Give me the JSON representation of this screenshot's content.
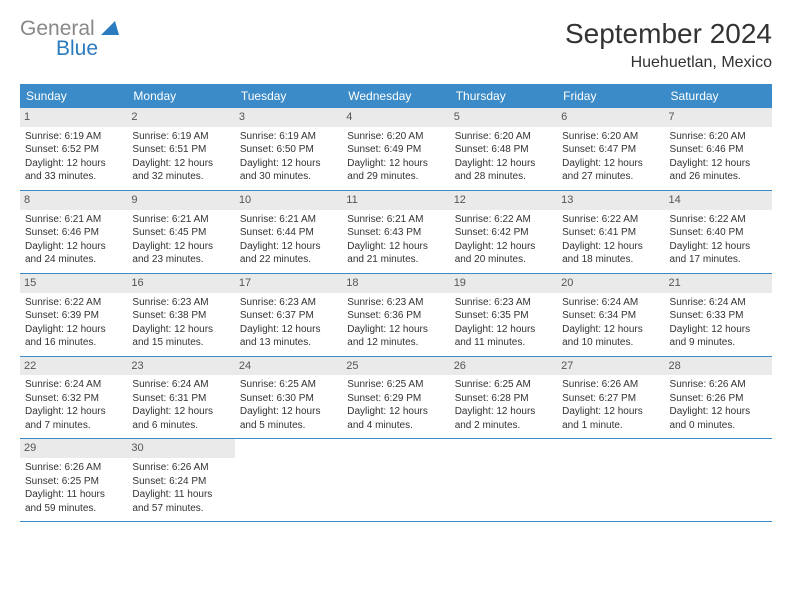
{
  "logo": {
    "general": "General",
    "blue": "Blue"
  },
  "title": "September 2024",
  "location": "Huehuetlan, Mexico",
  "colors": {
    "header_bg": "#3b8bc8",
    "header_text": "#ffffff",
    "daynum_bg": "#eaeaea",
    "border": "#3b8bc8",
    "logo_gray": "#888888",
    "logo_blue": "#2b7bbf"
  },
  "day_names": [
    "Sunday",
    "Monday",
    "Tuesday",
    "Wednesday",
    "Thursday",
    "Friday",
    "Saturday"
  ],
  "weeks": [
    [
      {
        "n": "1",
        "sr": "Sunrise: 6:19 AM",
        "ss": "Sunset: 6:52 PM",
        "d1": "Daylight: 12 hours",
        "d2": "and 33 minutes."
      },
      {
        "n": "2",
        "sr": "Sunrise: 6:19 AM",
        "ss": "Sunset: 6:51 PM",
        "d1": "Daylight: 12 hours",
        "d2": "and 32 minutes."
      },
      {
        "n": "3",
        "sr": "Sunrise: 6:19 AM",
        "ss": "Sunset: 6:50 PM",
        "d1": "Daylight: 12 hours",
        "d2": "and 30 minutes."
      },
      {
        "n": "4",
        "sr": "Sunrise: 6:20 AM",
        "ss": "Sunset: 6:49 PM",
        "d1": "Daylight: 12 hours",
        "d2": "and 29 minutes."
      },
      {
        "n": "5",
        "sr": "Sunrise: 6:20 AM",
        "ss": "Sunset: 6:48 PM",
        "d1": "Daylight: 12 hours",
        "d2": "and 28 minutes."
      },
      {
        "n": "6",
        "sr": "Sunrise: 6:20 AM",
        "ss": "Sunset: 6:47 PM",
        "d1": "Daylight: 12 hours",
        "d2": "and 27 minutes."
      },
      {
        "n": "7",
        "sr": "Sunrise: 6:20 AM",
        "ss": "Sunset: 6:46 PM",
        "d1": "Daylight: 12 hours",
        "d2": "and 26 minutes."
      }
    ],
    [
      {
        "n": "8",
        "sr": "Sunrise: 6:21 AM",
        "ss": "Sunset: 6:46 PM",
        "d1": "Daylight: 12 hours",
        "d2": "and 24 minutes."
      },
      {
        "n": "9",
        "sr": "Sunrise: 6:21 AM",
        "ss": "Sunset: 6:45 PM",
        "d1": "Daylight: 12 hours",
        "d2": "and 23 minutes."
      },
      {
        "n": "10",
        "sr": "Sunrise: 6:21 AM",
        "ss": "Sunset: 6:44 PM",
        "d1": "Daylight: 12 hours",
        "d2": "and 22 minutes."
      },
      {
        "n": "11",
        "sr": "Sunrise: 6:21 AM",
        "ss": "Sunset: 6:43 PM",
        "d1": "Daylight: 12 hours",
        "d2": "and 21 minutes."
      },
      {
        "n": "12",
        "sr": "Sunrise: 6:22 AM",
        "ss": "Sunset: 6:42 PM",
        "d1": "Daylight: 12 hours",
        "d2": "and 20 minutes."
      },
      {
        "n": "13",
        "sr": "Sunrise: 6:22 AM",
        "ss": "Sunset: 6:41 PM",
        "d1": "Daylight: 12 hours",
        "d2": "and 18 minutes."
      },
      {
        "n": "14",
        "sr": "Sunrise: 6:22 AM",
        "ss": "Sunset: 6:40 PM",
        "d1": "Daylight: 12 hours",
        "d2": "and 17 minutes."
      }
    ],
    [
      {
        "n": "15",
        "sr": "Sunrise: 6:22 AM",
        "ss": "Sunset: 6:39 PM",
        "d1": "Daylight: 12 hours",
        "d2": "and 16 minutes."
      },
      {
        "n": "16",
        "sr": "Sunrise: 6:23 AM",
        "ss": "Sunset: 6:38 PM",
        "d1": "Daylight: 12 hours",
        "d2": "and 15 minutes."
      },
      {
        "n": "17",
        "sr": "Sunrise: 6:23 AM",
        "ss": "Sunset: 6:37 PM",
        "d1": "Daylight: 12 hours",
        "d2": "and 13 minutes."
      },
      {
        "n": "18",
        "sr": "Sunrise: 6:23 AM",
        "ss": "Sunset: 6:36 PM",
        "d1": "Daylight: 12 hours",
        "d2": "and 12 minutes."
      },
      {
        "n": "19",
        "sr": "Sunrise: 6:23 AM",
        "ss": "Sunset: 6:35 PM",
        "d1": "Daylight: 12 hours",
        "d2": "and 11 minutes."
      },
      {
        "n": "20",
        "sr": "Sunrise: 6:24 AM",
        "ss": "Sunset: 6:34 PM",
        "d1": "Daylight: 12 hours",
        "d2": "and 10 minutes."
      },
      {
        "n": "21",
        "sr": "Sunrise: 6:24 AM",
        "ss": "Sunset: 6:33 PM",
        "d1": "Daylight: 12 hours",
        "d2": "and 9 minutes."
      }
    ],
    [
      {
        "n": "22",
        "sr": "Sunrise: 6:24 AM",
        "ss": "Sunset: 6:32 PM",
        "d1": "Daylight: 12 hours",
        "d2": "and 7 minutes."
      },
      {
        "n": "23",
        "sr": "Sunrise: 6:24 AM",
        "ss": "Sunset: 6:31 PM",
        "d1": "Daylight: 12 hours",
        "d2": "and 6 minutes."
      },
      {
        "n": "24",
        "sr": "Sunrise: 6:25 AM",
        "ss": "Sunset: 6:30 PM",
        "d1": "Daylight: 12 hours",
        "d2": "and 5 minutes."
      },
      {
        "n": "25",
        "sr": "Sunrise: 6:25 AM",
        "ss": "Sunset: 6:29 PM",
        "d1": "Daylight: 12 hours",
        "d2": "and 4 minutes."
      },
      {
        "n": "26",
        "sr": "Sunrise: 6:25 AM",
        "ss": "Sunset: 6:28 PM",
        "d1": "Daylight: 12 hours",
        "d2": "and 2 minutes."
      },
      {
        "n": "27",
        "sr": "Sunrise: 6:26 AM",
        "ss": "Sunset: 6:27 PM",
        "d1": "Daylight: 12 hours",
        "d2": "and 1 minute."
      },
      {
        "n": "28",
        "sr": "Sunrise: 6:26 AM",
        "ss": "Sunset: 6:26 PM",
        "d1": "Daylight: 12 hours",
        "d2": "and 0 minutes."
      }
    ],
    [
      {
        "n": "29",
        "sr": "Sunrise: 6:26 AM",
        "ss": "Sunset: 6:25 PM",
        "d1": "Daylight: 11 hours",
        "d2": "and 59 minutes."
      },
      {
        "n": "30",
        "sr": "Sunrise: 6:26 AM",
        "ss": "Sunset: 6:24 PM",
        "d1": "Daylight: 11 hours",
        "d2": "and 57 minutes."
      },
      null,
      null,
      null,
      null,
      null
    ]
  ]
}
